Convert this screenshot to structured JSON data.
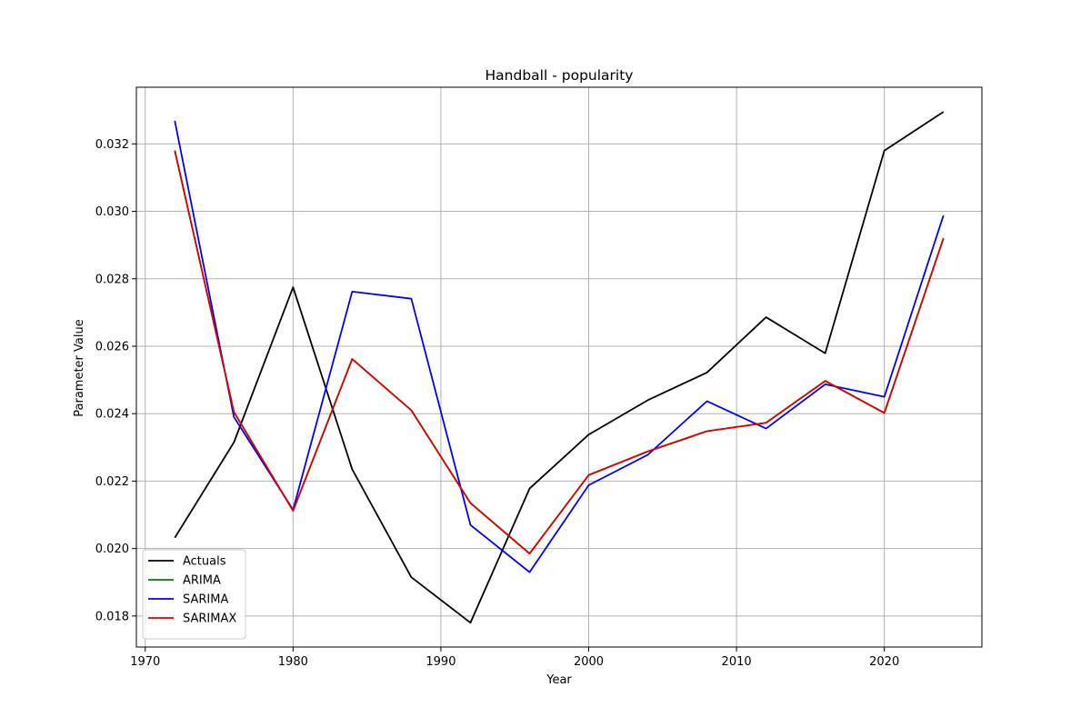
{
  "chart_data": {
    "type": "line",
    "title": "Handball - popularity",
    "xlabel": "Year",
    "ylabel": "Parameter Value",
    "xlim": [
      1969.4,
      2026.6
    ],
    "ylim": [
      0.01708,
      0.03368
    ],
    "xticks": [
      1970,
      1980,
      1990,
      2000,
      2010,
      2020
    ],
    "yticks": [
      0.018,
      0.02,
      0.022,
      0.024,
      0.026,
      0.028,
      0.03,
      0.032
    ],
    "ytick_labels": [
      "0.018",
      "0.020",
      "0.022",
      "0.024",
      "0.026",
      "0.028",
      "0.030",
      "0.032"
    ],
    "grid": true,
    "legend_position": "lower-left",
    "x": [
      1972,
      1976,
      1980,
      1984,
      1988,
      1992,
      1996,
      2000,
      2004,
      2008,
      2012,
      2016,
      2020,
      2024
    ],
    "series": [
      {
        "name": "Actuals",
        "color": "#000000",
        "values": [
          0.02032,
          0.02315,
          0.02775,
          0.02235,
          0.01915,
          0.0178,
          0.02178,
          0.02338,
          0.0244,
          0.02522,
          0.02686,
          0.02579,
          0.0318,
          0.03295
        ]
      },
      {
        "name": "ARIMA",
        "color": "#008000",
        "values": [
          0.0318,
          0.02405,
          0.02112,
          0.02562,
          0.0241,
          0.02135,
          0.01985,
          0.02218,
          0.02288,
          0.02348,
          0.02373,
          0.02497,
          0.02402,
          0.0292
        ]
      },
      {
        "name": "SARIMA",
        "color": "#0000ff",
        "values": [
          0.03268,
          0.0239,
          0.02115,
          0.02762,
          0.02741,
          0.0207,
          0.0193,
          0.02188,
          0.02278,
          0.02437,
          0.02356,
          0.02487,
          0.0245,
          0.02988
        ]
      },
      {
        "name": "SARIMAX",
        "color": "#e00000",
        "values": [
          0.0318,
          0.02405,
          0.02112,
          0.02562,
          0.0241,
          0.02135,
          0.01985,
          0.02218,
          0.02288,
          0.02348,
          0.02373,
          0.02497,
          0.02402,
          0.0292
        ]
      }
    ]
  }
}
